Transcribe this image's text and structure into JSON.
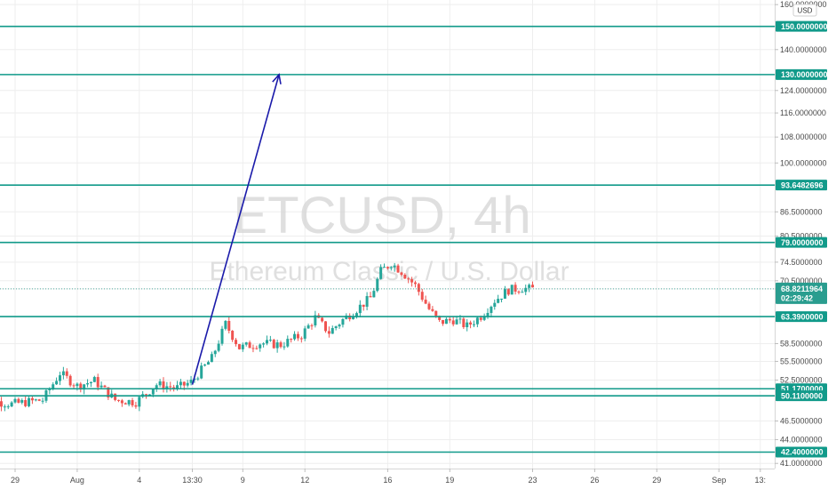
{
  "chart_data": {
    "type": "candlestick",
    "title": "ETCUSD, 4h",
    "subtitle": "Ethereum Classic / U.S. Dollar",
    "currency": "USD",
    "y_scale": "log",
    "ylim": [
      40.7,
      160.5
    ],
    "y_ticks": [
      "160.0000000",
      "150.0000000",
      "140.0000000",
      "130.0000000",
      "124.0000000",
      "116.0000000",
      "108.0000000",
      "100.0000000",
      "93.6482696",
      "86.5000000",
      "80.5000000",
      "79.0000000",
      "74.5000000",
      "70.5000000",
      "68.8211964",
      "63.3900000",
      "58.5000000",
      "55.5000000",
      "52.5000000",
      "51.1700000",
      "50.1100000",
      "46.5000000",
      "44.0000000",
      "42.4000000",
      "41.0000000"
    ],
    "x_labels": [
      {
        "label": "29",
        "date": "2021-07-29"
      },
      {
        "label": "Aug",
        "date": "2021-08-01"
      },
      {
        "label": "4",
        "date": "2021-08-04"
      },
      {
        "label": "13:30",
        "date": "2021-08-06T13:30"
      },
      {
        "label": "9",
        "date": "2021-08-09"
      },
      {
        "label": "12",
        "date": "2021-08-12"
      },
      {
        "label": "16",
        "date": "2021-08-16"
      },
      {
        "label": "19",
        "date": "2021-08-19"
      },
      {
        "label": "23",
        "date": "2021-08-23"
      },
      {
        "label": "26",
        "date": "2021-08-26"
      },
      {
        "label": "29",
        "date": "2021-08-29"
      },
      {
        "label": "Sep",
        "date": "2021-09-01"
      },
      {
        "label": "13:",
        "date": "2021-09-03"
      }
    ],
    "levels": [
      150.0,
      130.0,
      93.6482696,
      79.0,
      63.39,
      51.17,
      50.11,
      42.4
    ],
    "level_labels": [
      "150.0000000",
      "130.0000000",
      "93.6482696",
      "79.0000000",
      "63.3900000",
      "51.1700000",
      "50.1100000",
      "42.4000000"
    ],
    "last_price": 68.8211964,
    "last_price_label": "68.8211964",
    "countdown": "02:29:42",
    "arrow": {
      "from": {
        "date": "2021-08-06T13:30",
        "price": 51.8
      },
      "to": {
        "date": "2021-08-10T18:00",
        "price": 130.0
      }
    },
    "candle_path": [
      {
        "date": "2021-07-27T04:00",
        "price": 49.8
      },
      {
        "date": "2021-07-29T00:00",
        "price": 48.9
      },
      {
        "date": "2021-07-30T12:00",
        "price": 49.5
      },
      {
        "date": "2021-07-31T08:00",
        "price": 53.6
      },
      {
        "date": "2021-08-01T04:00",
        "price": 51.6
      },
      {
        "date": "2021-08-02T00:00",
        "price": 52.4
      },
      {
        "date": "2021-08-03T00:00",
        "price": 49.5
      },
      {
        "date": "2021-08-04T00:00",
        "price": 49.2
      },
      {
        "date": "2021-08-05T00:00",
        "price": 51.8
      },
      {
        "date": "2021-08-06T00:00",
        "price": 51.3
      },
      {
        "date": "2021-08-06T16:00",
        "price": 52.2
      },
      {
        "date": "2021-08-07T16:00",
        "price": 56.0
      },
      {
        "date": "2021-08-08T08:00",
        "price": 62.0
      },
      {
        "date": "2021-08-09T00:00",
        "price": 57.8
      },
      {
        "date": "2021-08-10T00:00",
        "price": 58.6
      },
      {
        "date": "2021-08-11T00:00",
        "price": 58.3
      },
      {
        "date": "2021-08-12T00:00",
        "price": 60.0
      },
      {
        "date": "2021-08-12T16:00",
        "price": 63.2
      },
      {
        "date": "2021-08-13T08:00",
        "price": 60.5
      },
      {
        "date": "2021-08-14T00:00",
        "price": 62.8
      },
      {
        "date": "2021-08-14T16:00",
        "price": 64.8
      },
      {
        "date": "2021-08-15T08:00",
        "price": 67.0
      },
      {
        "date": "2021-08-15T20:00",
        "price": 72.5
      },
      {
        "date": "2021-08-16T08:00",
        "price": 74.3
      },
      {
        "date": "2021-08-16T20:00",
        "price": 72.5
      },
      {
        "date": "2021-08-17T12:00",
        "price": 69.5
      },
      {
        "date": "2021-08-18T04:00",
        "price": 64.8
      },
      {
        "date": "2021-08-18T16:00",
        "price": 62.3
      },
      {
        "date": "2021-08-19T08:00",
        "price": 62.8
      },
      {
        "date": "2021-08-20T00:00",
        "price": 61.6
      },
      {
        "date": "2021-08-20T16:00",
        "price": 63.5
      },
      {
        "date": "2021-08-21T08:00",
        "price": 66.5
      },
      {
        "date": "2021-08-22T00:00",
        "price": 68.6
      },
      {
        "date": "2021-08-22T16:00",
        "price": 69.0
      },
      {
        "date": "2021-08-23T00:00",
        "price": 68.8
      }
    ],
    "colors": {
      "up": "#26a69a",
      "down": "#ef5350",
      "level": "#119a8a",
      "arrow": "#1a1aaa",
      "grid": "#eeeeee",
      "last_price": "#2a9d8f"
    }
  }
}
